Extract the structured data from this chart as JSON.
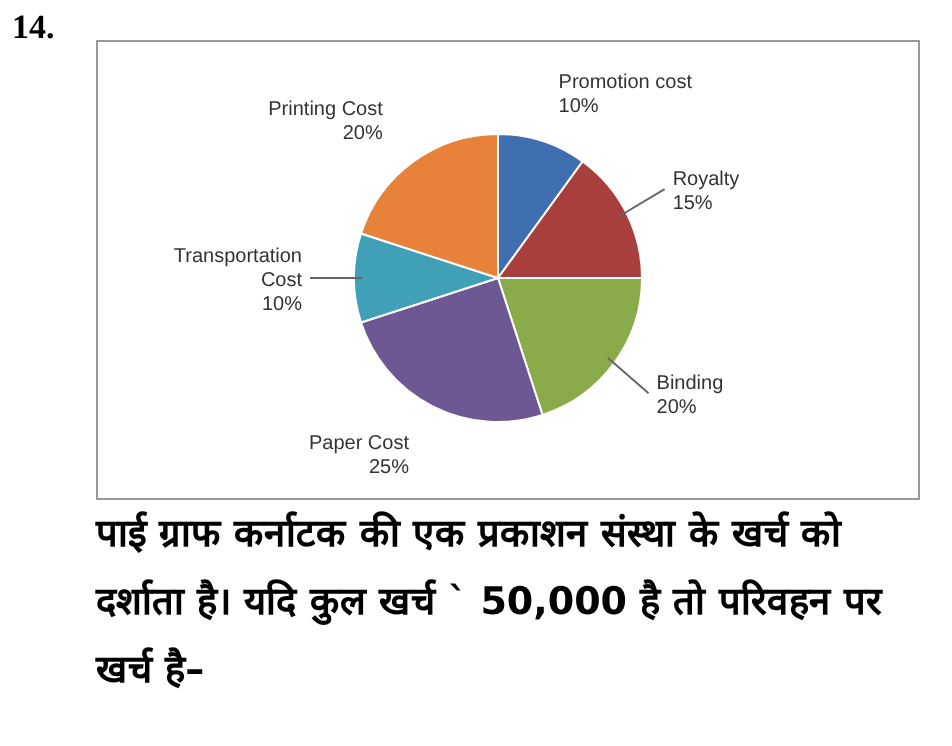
{
  "chart_data": {
    "type": "pie",
    "categories": [
      "Promotion cost",
      "Royalty",
      "Binding",
      "Paper Cost",
      "Transportation Cost",
      "Printing Cost"
    ],
    "values": [
      10,
      15,
      20,
      25,
      10,
      20
    ],
    "value_labels": [
      "10%",
      "15%",
      "20%",
      "25%",
      "10%",
      "20%"
    ],
    "colors": [
      "#3f6fb0",
      "#a83f3c",
      "#8aab4a",
      "#6e5894",
      "#3fa0b8",
      "#e8823a"
    ],
    "legend": false,
    "annotations": [
      "14.",
      "पाई ग्राफ कर्नाटक की एक प्रकाशन संस्था के खर्च को दर्शाता है। यदि कुल खर्च ` 50,000 है तो परिवहन पर खर्च है–"
    ]
  }
}
